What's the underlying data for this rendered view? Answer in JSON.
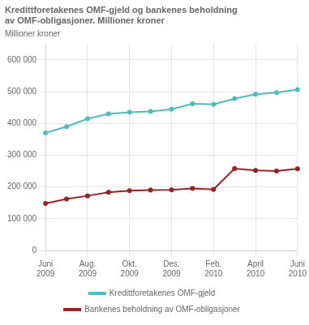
{
  "chart_data": {
    "type": "line",
    "title": "Kredittforetakenes OMF-gjeld og bankenes beholdning\nav OMF-obligasjoner. Millioner kroner",
    "y_label": "Millioner kroner",
    "categories": [
      "Juni\n2009",
      null,
      "Aug.\n2009",
      null,
      "Okt.\n2009",
      null,
      "Des.\n2009",
      null,
      "Feb.\n2010",
      null,
      "April\n2010",
      null,
      "Juni\n2010"
    ],
    "series": [
      {
        "name": "Kredittforetakenes\nOMF-gjeld",
        "color": "#4dbdbd",
        "values": [
          370000,
          390000,
          415000,
          430000,
          435000,
          438000,
          445000,
          462000,
          460000,
          478000,
          492000,
          497000,
          507000
        ]
      },
      {
        "name": "Bankenes beholdning av\nOMF-obligasjoner",
        "color": "#992222",
        "values": [
          148000,
          162000,
          172000,
          183000,
          188000,
          190000,
          191000,
          195000,
          192000,
          258000,
          252000,
          250000,
          257000
        ]
      }
    ],
    "ylim": [
      0,
      650000
    ],
    "yticks": [
      0,
      {
        "value": 100000,
        "label": "100 000"
      },
      {
        "value": 200000,
        "label": "200 000"
      },
      {
        "value": 300000,
        "label": "300 000"
      },
      {
        "value": 400000,
        "label": "400 000"
      },
      {
        "value": 500000,
        "label": "500 000"
      },
      {
        "value": 600000,
        "label": "600 000"
      }
    ],
    "grid": true,
    "legend": "bottom"
  }
}
